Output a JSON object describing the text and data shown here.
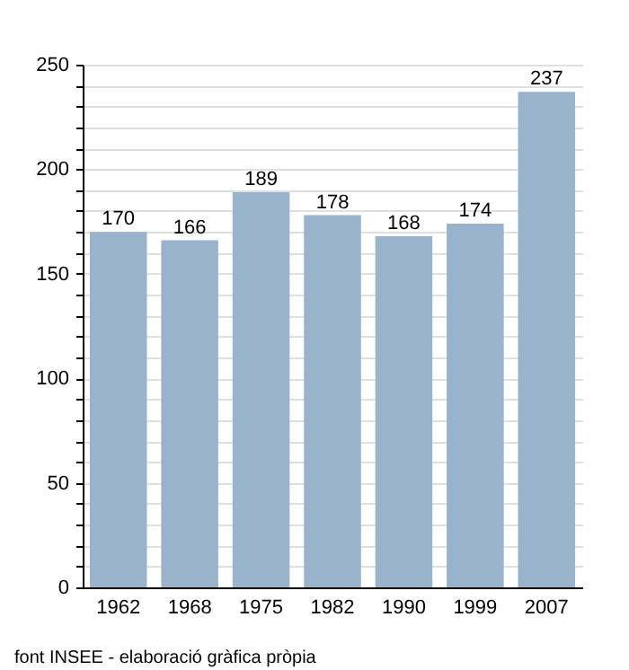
{
  "chart_data": {
    "type": "bar",
    "categories": [
      "1962",
      "1968",
      "1975",
      "1982",
      "1990",
      "1999",
      "2007"
    ],
    "values": [
      170,
      166,
      189,
      178,
      168,
      174,
      237
    ],
    "color": "#9ab3cc",
    "ylim": [
      0,
      250
    ],
    "yticks": [
      0,
      {
        "value": 10,
        "label": null
      },
      {
        "value": 20,
        "label": null
      },
      {
        "value": 30,
        "label": null
      },
      {
        "value": 40,
        "label": null
      },
      50,
      {
        "value": 60,
        "label": null
      },
      {
        "value": 70,
        "label": null
      },
      {
        "value": 80,
        "label": null
      },
      {
        "value": 90,
        "label": null
      },
      100,
      {
        "value": 110,
        "label": null
      },
      {
        "value": 120,
        "label": null
      },
      {
        "value": 130,
        "label": null
      },
      {
        "value": 140,
        "label": null
      },
      150,
      {
        "value": 160,
        "label": null
      },
      {
        "value": 170,
        "label": null
      },
      {
        "value": 180,
        "label": null
      },
      {
        "value": 190,
        "label": null
      },
      200,
      {
        "value": 210,
        "label": null
      },
      {
        "value": 220,
        "label": null
      },
      {
        "value": 230,
        "label": null
      },
      {
        "value": 240,
        "label": null
      },
      250
    ],
    "grid": "y",
    "data_labels": true,
    "annotations": [
      "font INSEE - elaboració gràfica pròpia"
    ]
  }
}
